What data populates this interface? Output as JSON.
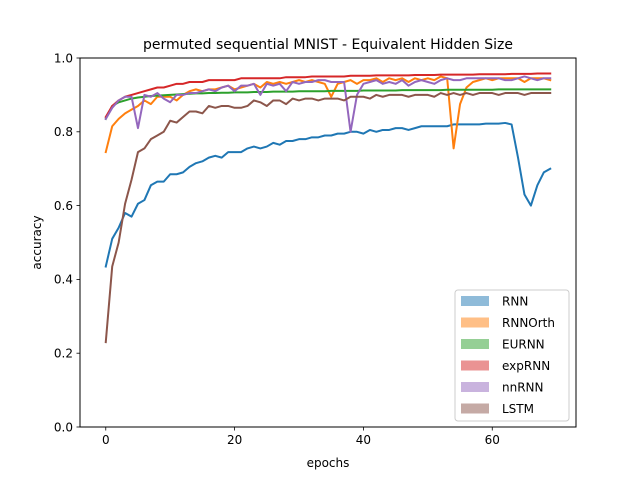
{
  "chart_data": {
    "type": "line",
    "title": "permuted sequential MNIST - Equivalent Hidden Size",
    "xlabel": "epochs",
    "ylabel": "accuracy",
    "xlim": [
      -4,
      73
    ],
    "ylim": [
      0.0,
      1.0
    ],
    "xticks": [
      0,
      20,
      40,
      60
    ],
    "yticks": [
      0.0,
      0.2,
      0.4,
      0.6,
      0.8,
      1.0
    ],
    "grid": false,
    "legend_position": "lower-right",
    "series": [
      {
        "name": "RNN",
        "color": "#1f77b4",
        "values": [
          0.435,
          0.51,
          0.54,
          0.58,
          0.57,
          0.605,
          0.615,
          0.655,
          0.665,
          0.665,
          0.685,
          0.685,
          0.69,
          0.705,
          0.715,
          0.72,
          0.73,
          0.735,
          0.73,
          0.745,
          0.745,
          0.745,
          0.755,
          0.76,
          0.755,
          0.76,
          0.77,
          0.765,
          0.775,
          0.775,
          0.78,
          0.78,
          0.785,
          0.785,
          0.79,
          0.79,
          0.795,
          0.795,
          0.8,
          0.8,
          0.795,
          0.805,
          0.8,
          0.805,
          0.805,
          0.81,
          0.81,
          0.805,
          0.81,
          0.815,
          0.815,
          0.815,
          0.815,
          0.815,
          0.82,
          0.82,
          0.82,
          0.82,
          0.82,
          0.822,
          0.822,
          0.822,
          0.824,
          0.82,
          0.73,
          0.63,
          0.6,
          0.655,
          0.69,
          0.7
        ]
      },
      {
        "name": "RNNOrth",
        "color": "#ff7f0e",
        "values": [
          0.745,
          0.815,
          0.835,
          0.85,
          0.86,
          0.87,
          0.885,
          0.875,
          0.895,
          0.895,
          0.895,
          0.885,
          0.9,
          0.91,
          0.915,
          0.91,
          0.915,
          0.915,
          0.92,
          0.925,
          0.915,
          0.92,
          0.925,
          0.93,
          0.92,
          0.935,
          0.93,
          0.935,
          0.93,
          0.935,
          0.94,
          0.935,
          0.94,
          0.935,
          0.93,
          0.895,
          0.93,
          0.935,
          0.94,
          0.93,
          0.94,
          0.94,
          0.945,
          0.935,
          0.945,
          0.94,
          0.945,
          0.935,
          0.945,
          0.94,
          0.945,
          0.94,
          0.95,
          0.945,
          0.755,
          0.875,
          0.92,
          0.935,
          0.94,
          0.945,
          0.94,
          0.945,
          0.945,
          0.945,
          0.945,
          0.935,
          0.945,
          0.945,
          0.945,
          0.94
        ]
      },
      {
        "name": "EURNN",
        "color": "#2ca02c",
        "values": [
          0.835,
          0.87,
          0.88,
          0.885,
          0.89,
          0.893,
          0.895,
          0.897,
          0.898,
          0.899,
          0.9,
          0.901,
          0.902,
          0.903,
          0.904,
          0.904,
          0.905,
          0.905,
          0.906,
          0.906,
          0.907,
          0.907,
          0.907,
          0.908,
          0.908,
          0.908,
          0.909,
          0.909,
          0.909,
          0.909,
          0.91,
          0.91,
          0.91,
          0.91,
          0.91,
          0.911,
          0.911,
          0.911,
          0.911,
          0.911,
          0.912,
          0.912,
          0.912,
          0.912,
          0.912,
          0.912,
          0.913,
          0.913,
          0.913,
          0.913,
          0.913,
          0.913,
          0.913,
          0.914,
          0.914,
          0.914,
          0.914,
          0.914,
          0.914,
          0.914,
          0.914,
          0.915,
          0.915,
          0.915,
          0.915,
          0.915,
          0.915,
          0.915,
          0.915,
          0.915
        ]
      },
      {
        "name": "expRNN",
        "color": "#d62728",
        "values": [
          0.84,
          0.87,
          0.885,
          0.895,
          0.9,
          0.905,
          0.91,
          0.915,
          0.92,
          0.92,
          0.925,
          0.93,
          0.93,
          0.935,
          0.935,
          0.935,
          0.94,
          0.94,
          0.94,
          0.94,
          0.94,
          0.945,
          0.945,
          0.945,
          0.945,
          0.945,
          0.945,
          0.945,
          0.948,
          0.948,
          0.948,
          0.948,
          0.95,
          0.95,
          0.95,
          0.95,
          0.95,
          0.95,
          0.952,
          0.952,
          0.952,
          0.952,
          0.953,
          0.953,
          0.953,
          0.953,
          0.953,
          0.953,
          0.954,
          0.954,
          0.954,
          0.954,
          0.955,
          0.955,
          0.955,
          0.955,
          0.955,
          0.955,
          0.956,
          0.956,
          0.956,
          0.956,
          0.956,
          0.957,
          0.957,
          0.957,
          0.957,
          0.958,
          0.958,
          0.958
        ]
      },
      {
        "name": "nnRNN",
        "color": "#9467bd",
        "values": [
          0.835,
          0.865,
          0.885,
          0.895,
          0.895,
          0.81,
          0.9,
          0.895,
          0.905,
          0.89,
          0.88,
          0.9,
          0.9,
          0.905,
          0.905,
          0.91,
          0.915,
          0.91,
          0.92,
          0.925,
          0.91,
          0.925,
          0.925,
          0.93,
          0.9,
          0.93,
          0.925,
          0.93,
          0.91,
          0.935,
          0.93,
          0.935,
          0.935,
          0.94,
          0.94,
          0.935,
          0.935,
          0.935,
          0.8,
          0.9,
          0.93,
          0.935,
          0.94,
          0.93,
          0.935,
          0.93,
          0.94,
          0.925,
          0.935,
          0.94,
          0.935,
          0.93,
          0.94,
          0.945,
          0.94,
          0.94,
          0.945,
          0.945,
          0.945,
          0.945,
          0.945,
          0.945,
          0.94,
          0.94,
          0.945,
          0.95,
          0.945,
          0.94,
          0.945,
          0.945
        ]
      },
      {
        "name": "LSTM",
        "color": "#8c564b",
        "values": [
          0.23,
          0.435,
          0.5,
          0.605,
          0.67,
          0.745,
          0.755,
          0.78,
          0.79,
          0.8,
          0.83,
          0.825,
          0.84,
          0.855,
          0.855,
          0.85,
          0.87,
          0.865,
          0.87,
          0.87,
          0.865,
          0.865,
          0.87,
          0.885,
          0.88,
          0.87,
          0.885,
          0.885,
          0.875,
          0.89,
          0.885,
          0.89,
          0.89,
          0.885,
          0.89,
          0.89,
          0.89,
          0.885,
          0.895,
          0.895,
          0.895,
          0.89,
          0.9,
          0.895,
          0.9,
          0.9,
          0.9,
          0.895,
          0.9,
          0.9,
          0.9,
          0.895,
          0.905,
          0.9,
          0.905,
          0.9,
          0.905,
          0.9,
          0.905,
          0.905,
          0.905,
          0.9,
          0.905,
          0.905,
          0.905,
          0.9,
          0.905,
          0.905,
          0.905,
          0.905
        ]
      }
    ]
  }
}
